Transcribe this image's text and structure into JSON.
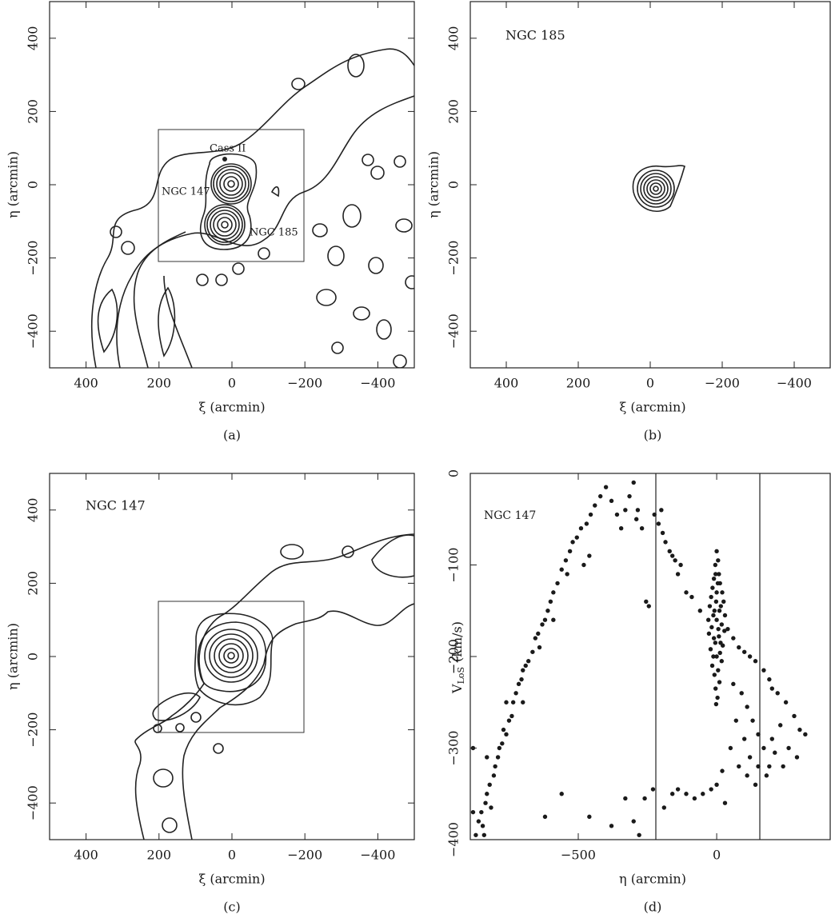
{
  "chart_data": [
    {
      "type": "contour",
      "xlabel": "ξ (arcmin)",
      "ylabel": "η (arcmin)",
      "caption": "(a)",
      "annotations": [
        "Cass II",
        "NGC 147",
        "NGC 185"
      ],
      "xlim": [
        500,
        -500
      ],
      "ylim": [
        -500,
        500
      ],
      "xticks": [
        400,
        200,
        0,
        {
          "value": -200,
          "label": "−200"
        },
        {
          "value": -400,
          "label": "−400"
        }
      ],
      "yticks": [
        400,
        200,
        0,
        {
          "value": -200,
          "label": "−200"
        },
        {
          "value": -400,
          "label": "−400"
        }
      ]
    },
    {
      "type": "contour",
      "title": "NGC 185",
      "xlabel": "ξ (arcmin)",
      "ylabel": "η (arcmin)",
      "caption": "(b)",
      "xlim": [
        500,
        -500
      ],
      "ylim": [
        -500,
        500
      ],
      "xticks": [
        400,
        200,
        0,
        {
          "value": -200,
          "label": "−200"
        },
        {
          "value": -400,
          "label": "−400"
        }
      ],
      "yticks": [
        400,
        200,
        0,
        {
          "value": -200,
          "label": "−200"
        },
        {
          "value": -400,
          "label": "−400"
        }
      ]
    },
    {
      "type": "contour",
      "title": "NGC 147",
      "xlabel": "ξ (arcmin)",
      "ylabel": "η (arcmin)",
      "caption": "(c)",
      "xlim": [
        500,
        -500
      ],
      "ylim": [
        -500,
        500
      ],
      "xticks": [
        400,
        200,
        0,
        {
          "value": -200,
          "label": "−200"
        },
        {
          "value": -400,
          "label": "−400"
        }
      ],
      "yticks": [
        400,
        200,
        0,
        {
          "value": -200,
          "label": "−200"
        },
        {
          "value": -400,
          "label": "−400"
        }
      ]
    },
    {
      "type": "scatter",
      "title": "NGC 147",
      "xlabel": "η (arcmin)",
      "ylabel": [
        "V",
        "LoS",
        "(km/s)"
      ],
      "caption": "(d)",
      "color": "#1a1a1a",
      "xlim": [
        -890,
        410
      ],
      "ylim": [
        -400,
        0
      ],
      "xticks": [
        {
          "value": -500,
          "label": "−500"
        },
        0
      ],
      "yticks": [
        0,
        {
          "value": -100,
          "label": "−100"
        },
        {
          "value": -200,
          "label": "−200"
        },
        {
          "value": -300,
          "label": "−300"
        },
        {
          "value": -400,
          "label": "−400"
        }
      ],
      "x": [
        -870,
        -860,
        -850,
        -845,
        -835,
        -830,
        -820,
        -815,
        -805,
        -800,
        -790,
        -785,
        -775,
        -770,
        -760,
        -750,
        -740,
        -735,
        -725,
        -715,
        -705,
        -700,
        -690,
        -680,
        -665,
        -655,
        -645,
        -630,
        -620,
        -610,
        -600,
        -590,
        -575,
        -560,
        -545,
        -530,
        -520,
        -505,
        -490,
        -470,
        -455,
        -440,
        -420,
        -400,
        -380,
        -360,
        -345,
        -330,
        -315,
        -300,
        -290,
        -285,
        -270,
        -255,
        -245,
        -880,
        -830,
        -760,
        -700,
        -640,
        -590,
        -540,
        -480,
        -460,
        -880,
        -840,
        -225,
        -210,
        -200,
        -195,
        -185,
        -170,
        -160,
        -150,
        -140,
        -130,
        -110,
        -90,
        -60,
        40,
        60,
        80,
        100,
        120,
        140,
        170,
        190,
        200,
        220,
        250,
        280,
        300,
        60,
        90,
        110,
        130,
        150,
        170,
        200,
        230,
        260,
        290,
        320,
        70,
        100,
        120,
        150,
        180,
        210,
        240,
        110,
        80,
        50,
        20,
        0,
        -20,
        -50,
        -80,
        -110,
        -140,
        -160,
        -190,
        -230,
        -260,
        -280,
        -300,
        -330,
        -380,
        -460,
        -560,
        -620,
        30,
        140,
        190,
        0,
        5,
        -5,
        8,
        -10,
        12,
        -15,
        20,
        -20,
        25,
        -25,
        15,
        -8,
        30,
        -30,
        0,
        18,
        -18,
        28,
        -28,
        8,
        -5,
        22,
        -22,
        12,
        -12,
        18,
        -16,
        5,
        -8,
        10,
        -4,
        3,
        -2,
        0,
        10,
        -12,
        6,
        -2,
        14,
        -10,
        0,
        4,
        -4
      ],
      "y": [
        -395,
        -380,
        -370,
        -385,
        -360,
        -350,
        -340,
        -365,
        -330,
        -320,
        -310,
        -300,
        -295,
        -280,
        -285,
        -270,
        -265,
        -250,
        -240,
        -230,
        -225,
        -215,
        -210,
        -205,
        -195,
        -180,
        -175,
        -165,
        -160,
        -150,
        -140,
        -130,
        -120,
        -105,
        -95,
        -85,
        -75,
        -70,
        -60,
        -55,
        -45,
        -35,
        -25,
        -15,
        -30,
        -45,
        -60,
        -40,
        -25,
        -10,
        -50,
        -40,
        -60,
        -140,
        -145,
        -300,
        -310,
        -250,
        -250,
        -190,
        -160,
        -110,
        -100,
        -90,
        -370,
        -395,
        -45,
        -55,
        -40,
        -65,
        -75,
        -85,
        -90,
        -95,
        -110,
        -100,
        -130,
        -135,
        -150,
        -170,
        -180,
        -190,
        -195,
        -200,
        -205,
        -215,
        -225,
        -235,
        -240,
        -250,
        -265,
        -280,
        -230,
        -240,
        -255,
        -270,
        -285,
        -300,
        -290,
        -275,
        -300,
        -310,
        -285,
        -270,
        -290,
        -310,
        -320,
        -330,
        -305,
        -320,
        -330,
        -320,
        -300,
        -325,
        -340,
        -345,
        -350,
        -355,
        -350,
        -345,
        -350,
        -365,
        -345,
        -355,
        -395,
        -380,
        -355,
        -385,
        -375,
        -350,
        -375,
        -360,
        -340,
        -320,
        -85,
        -95,
        -100,
        -110,
        -115,
        -120,
        -125,
        -130,
        -135,
        -140,
        -145,
        -145,
        -150,
        -155,
        -160,
        -160,
        -165,
        -168,
        -172,
        -175,
        -178,
        -185,
        -188,
        -192,
        -196,
        -200,
        -205,
        -210,
        -215,
        -220,
        -228,
        -235,
        -245,
        -252,
        -130,
        -150,
        -155,
        -170,
        -140,
        -185,
        -180,
        -200,
        -120,
        -110
      ]
    }
  ]
}
